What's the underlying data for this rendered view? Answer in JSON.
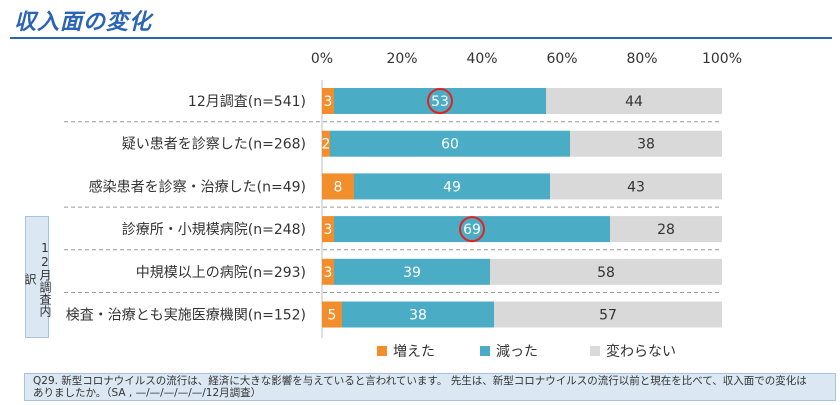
{
  "page": {
    "title": "収入面の変化",
    "side_label": "12月調査内訳",
    "footnote": "Q29. 新型コロナウイルスの流行は、経済に大きな影響を与えていると言われています。 先生は、新型コロナウイルスの流行以前と現在を比べて、収入面での変化はありましたか。（SA , —/—/—/—/—/12月調査）"
  },
  "colors": {
    "increase": "#f28e2b",
    "decrease": "#4bacc6",
    "unchanged": "#d9d9d9",
    "highlight": "#e8211c",
    "title": "#2a64b4"
  },
  "chart_data": {
    "type": "bar",
    "orientation": "horizontal",
    "stacked": true,
    "percent_scale": true,
    "xlim": [
      0,
      100
    ],
    "xticks": [
      "0%",
      "20%",
      "40%",
      "60%",
      "80%",
      "100%"
    ],
    "categories": [
      "12月調査(n=541)",
      "疑い患者を診察した(n=268)",
      "感染患者を診察・治療した(n=49)",
      "診療所・小規模病院(n=248)",
      "中規模以上の病院(n=293)",
      "検査・治療とも実施医療機関(n=152)"
    ],
    "series": [
      {
        "name": "増えた",
        "color": "#f28e2b",
        "values": [
          3,
          2,
          8,
          3,
          3,
          5
        ]
      },
      {
        "name": "減った",
        "color": "#4bacc6",
        "values": [
          53,
          60,
          49,
          69,
          39,
          38
        ]
      },
      {
        "name": "変わらない",
        "color": "#d9d9d9",
        "values": [
          44,
          38,
          43,
          28,
          58,
          57
        ]
      }
    ],
    "highlighted_values": [
      {
        "category_index": 0,
        "series_index": 1
      },
      {
        "category_index": 3,
        "series_index": 1
      }
    ],
    "legend_position": "bottom"
  }
}
